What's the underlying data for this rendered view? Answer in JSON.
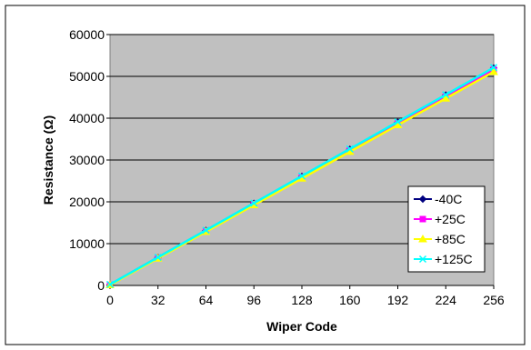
{
  "chart_data": {
    "type": "line",
    "xlabel": "Wiper Code",
    "ylabel": "Resistance (Ω)",
    "x": [
      0,
      32,
      64,
      96,
      128,
      160,
      192,
      224,
      256
    ],
    "xticks": [
      "0",
      "32",
      "64",
      "96",
      "128",
      "160",
      "192",
      "224",
      "256"
    ],
    "yticks": [
      "0",
      "10000",
      "20000",
      "30000",
      "40000",
      "50000",
      "60000"
    ],
    "xlim": [
      0,
      256
    ],
    "ylim": [
      0,
      60000
    ],
    "grid": "horizontal",
    "legend_position": "lower-right",
    "plot_background": "#C0C0C0",
    "series": [
      {
        "name": "-40C",
        "color": "#000080",
        "marker": "diamond",
        "values": [
          200,
          6680,
          13150,
          19620,
          26100,
          32570,
          39040,
          45520,
          52000
        ]
      },
      {
        "name": "+25C",
        "color": "#FF00FF",
        "marker": "square",
        "values": [
          150,
          6580,
          13000,
          19450,
          25880,
          32300,
          38740,
          45170,
          51600
        ]
      },
      {
        "name": "+85C",
        "color": "#FFFF00",
        "marker": "triangle",
        "values": [
          100,
          6480,
          12850,
          19230,
          25600,
          31980,
          38360,
          44730,
          51100
        ]
      },
      {
        "name": "+125C",
        "color": "#00FFFF",
        "marker": "x",
        "values": [
          250,
          6730,
          13210,
          19690,
          26170,
          32650,
          39130,
          45610,
          52100
        ]
      }
    ]
  }
}
